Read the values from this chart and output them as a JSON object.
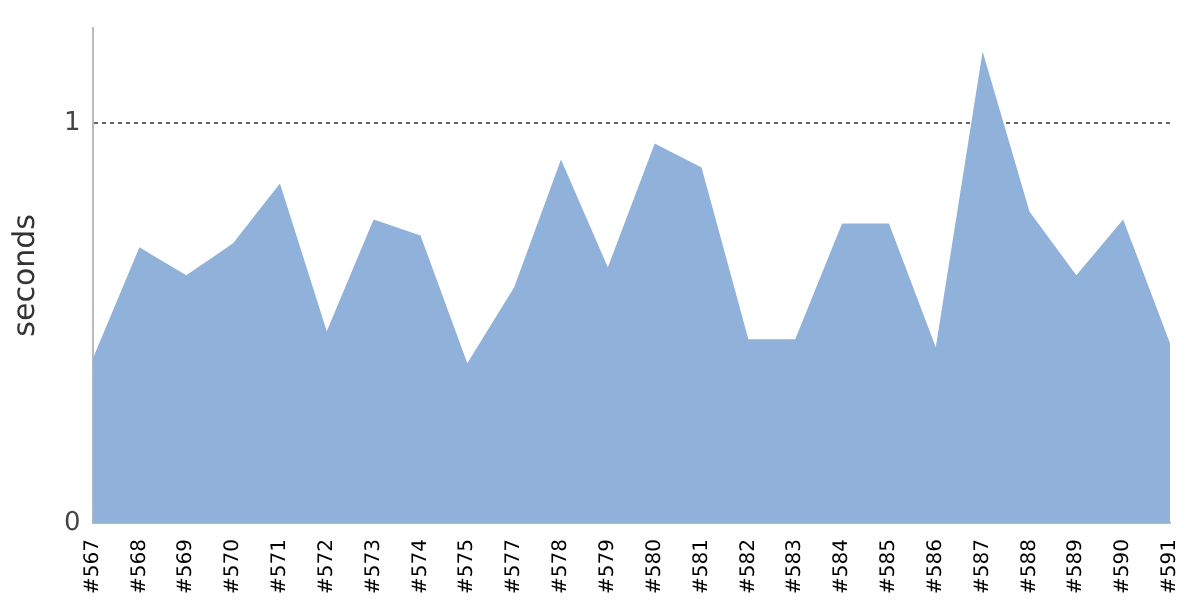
{
  "chart_data": {
    "type": "area",
    "ylabel": "seconds",
    "categories": [
      "#567",
      "#568",
      "#569",
      "#570",
      "#571",
      "#572",
      "#573",
      "#574",
      "#575",
      "#577",
      "#578",
      "#579",
      "#580",
      "#581",
      "#582",
      "#583",
      "#584",
      "#585",
      "#586",
      "#587",
      "#588",
      "#589",
      "#590",
      "#591"
    ],
    "series": [
      {
        "color": "#8fb1da",
        "values": [
          0.41,
          0.69,
          0.62,
          0.7,
          0.85,
          0.48,
          0.76,
          0.72,
          0.4,
          0.59,
          0.91,
          0.64,
          0.95,
          0.89,
          0.46,
          0.46,
          0.75,
          0.75,
          0.44,
          1.18,
          0.78,
          0.62,
          0.76,
          0.45
        ]
      }
    ],
    "ylim": [
      0,
      1.24
    ],
    "yticks": [
      0,
      1
    ],
    "grid": "y",
    "legend": false
  }
}
